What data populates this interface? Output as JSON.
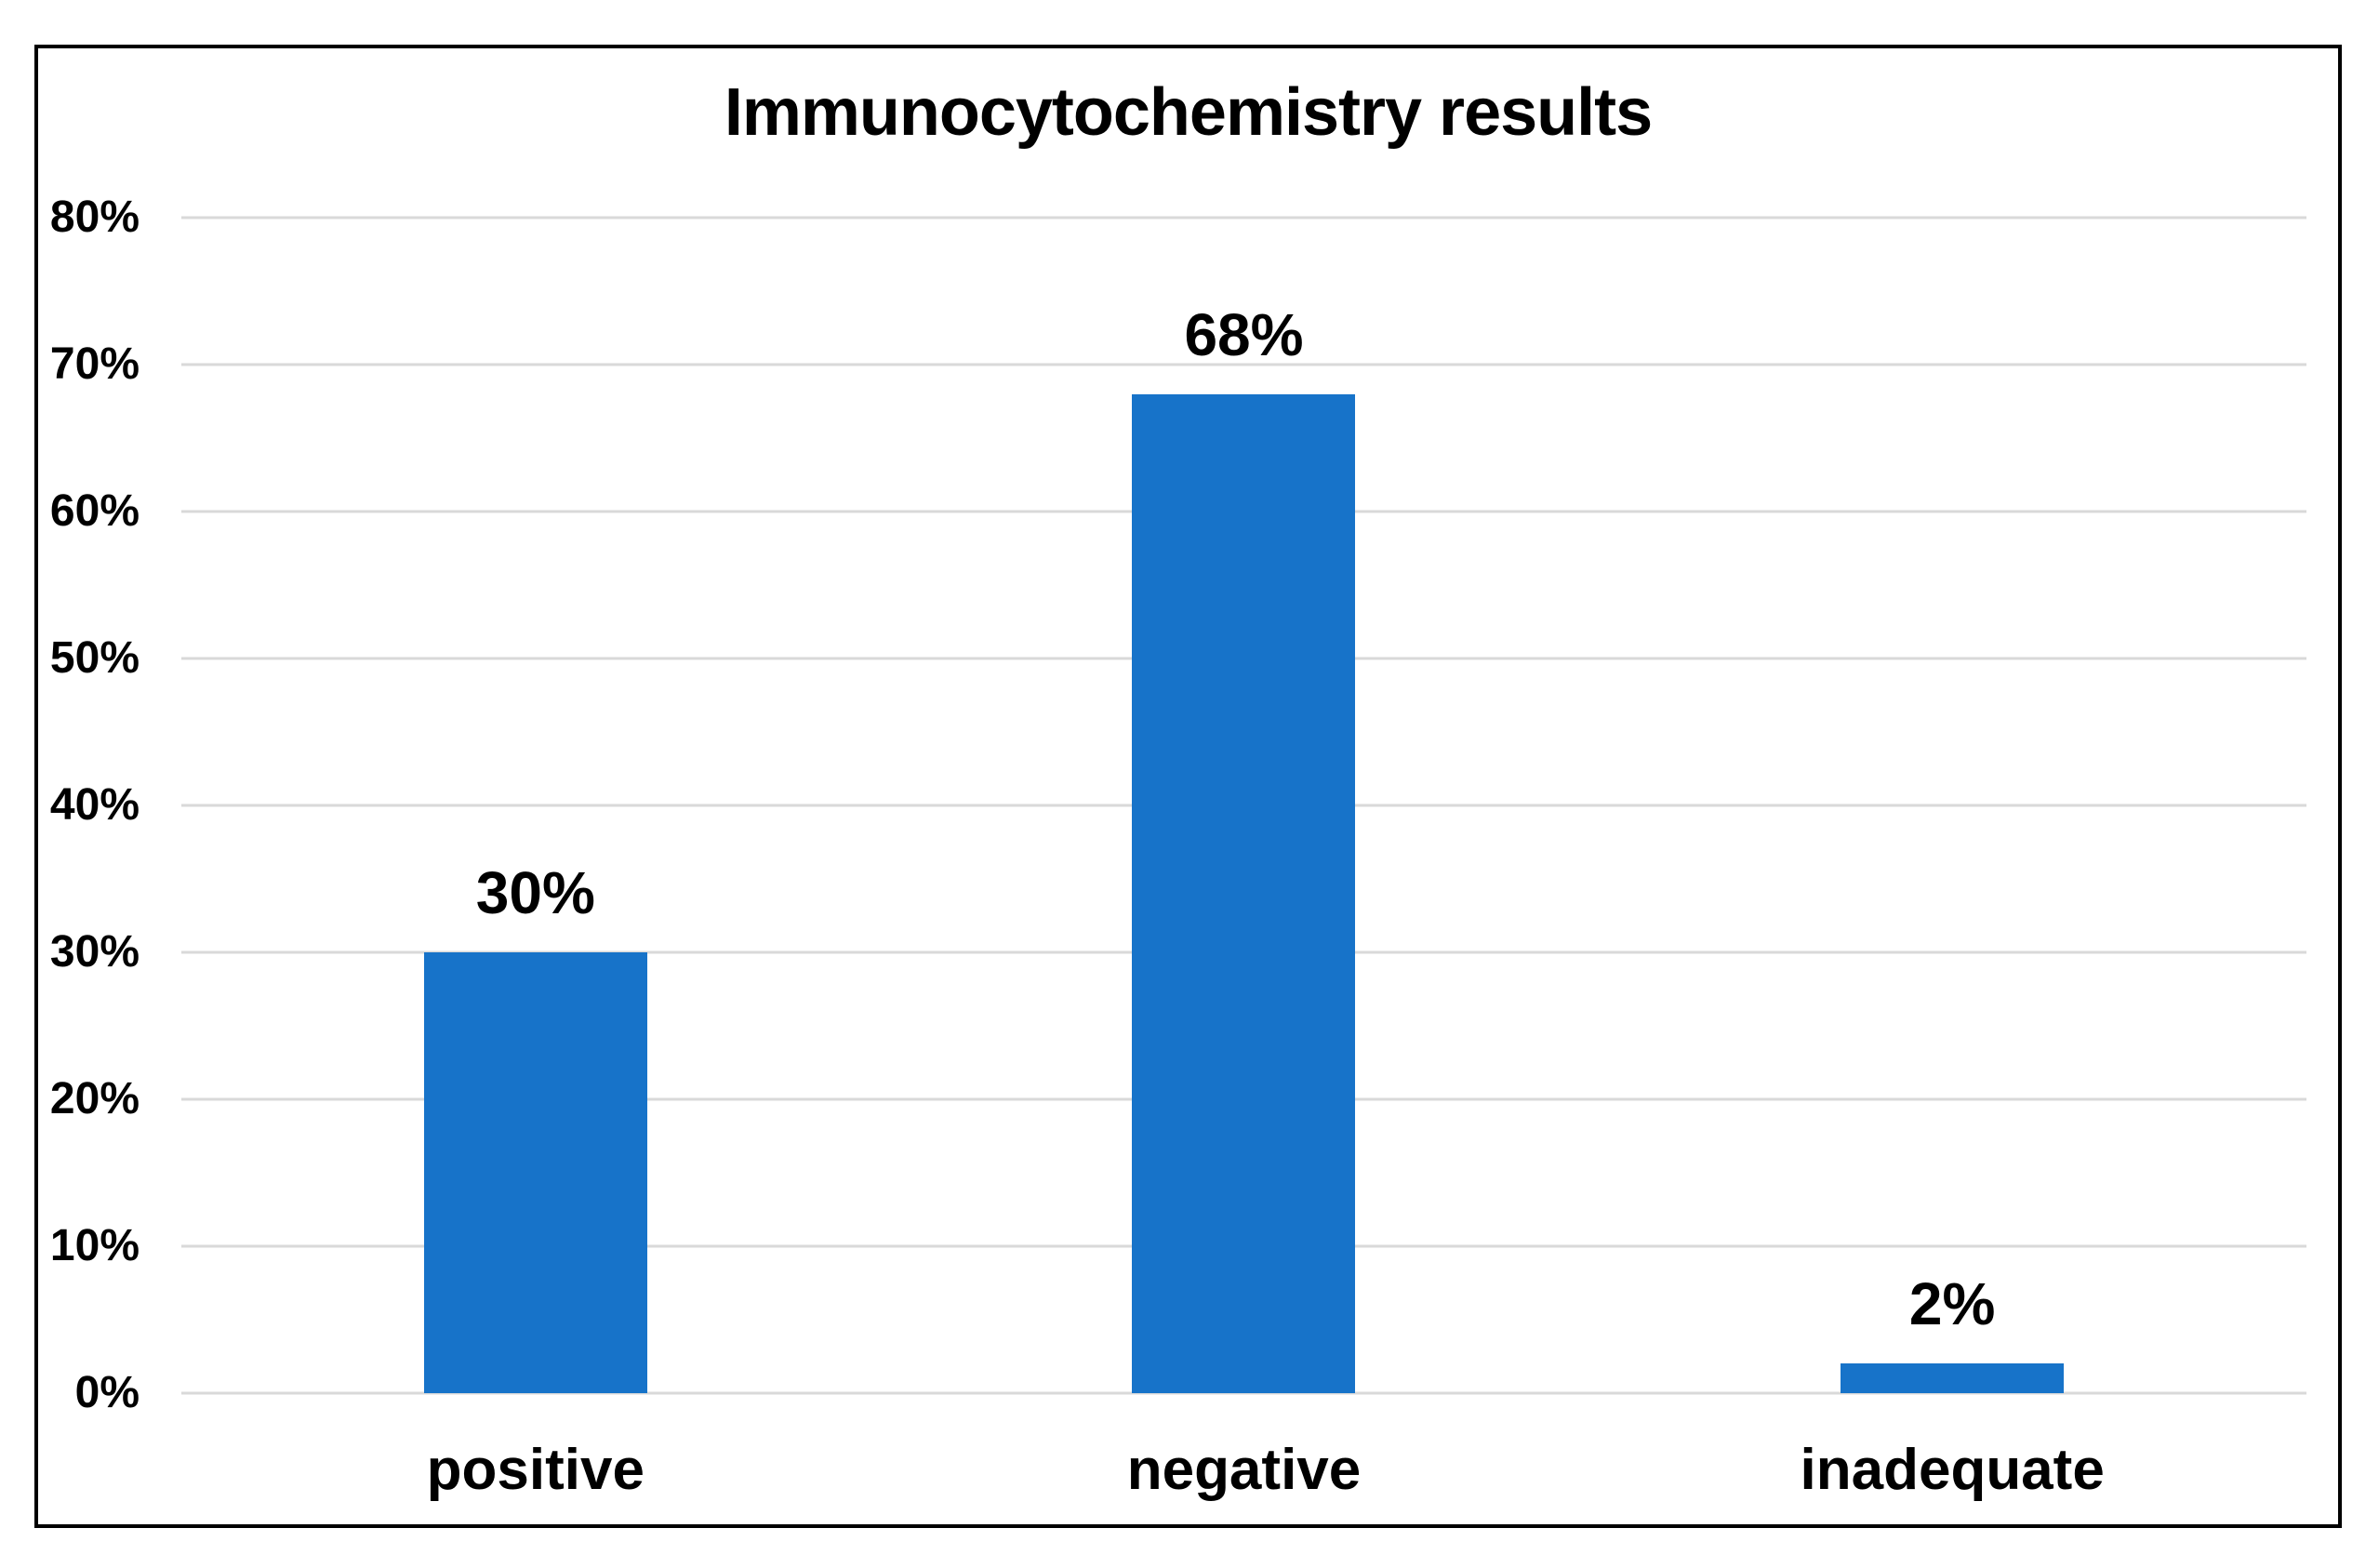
{
  "chart_data": {
    "type": "bar",
    "title": "Immunocytochemistry results",
    "categories": [
      "positive",
      "negative",
      "inadequate"
    ],
    "values": [
      30,
      68,
      2
    ],
    "value_labels": [
      "30%",
      "68%",
      "2%"
    ],
    "yticks": [
      "0%",
      "10%",
      "20%",
      "30%",
      "40%",
      "50%",
      "60%",
      "70%",
      "80%"
    ],
    "ytick_step": 10,
    "ylim": [
      0,
      80
    ],
    "xlabel": "",
    "ylabel": "",
    "grid": true,
    "legend": "none",
    "bar_color": "#1773C9",
    "gridline_color": "#D9D9D9",
    "frame_border_color": "#000000",
    "text_color": "#000000",
    "background_color": "#FFFFFF"
  }
}
